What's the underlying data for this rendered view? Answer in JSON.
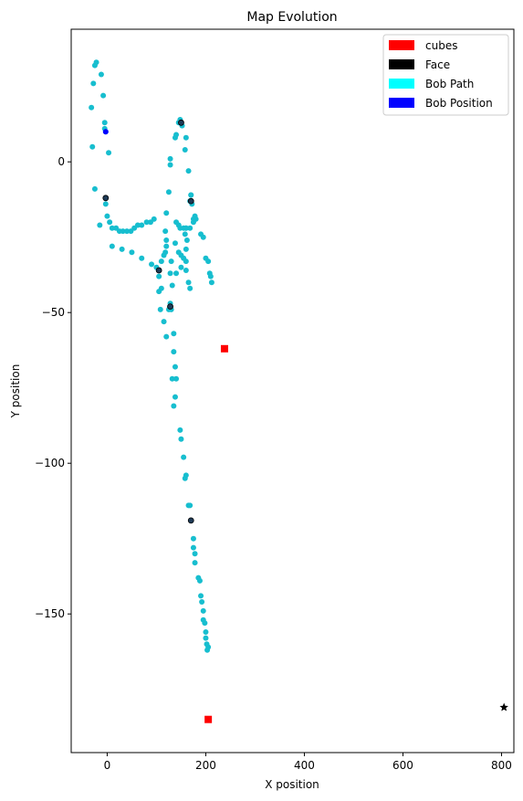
{
  "chart_data": {
    "type": "scatter",
    "title": "Map Evolution",
    "xlabel": "X position",
    "ylabel": "Y position",
    "xlim": [
      -73,
      825
    ],
    "ylim": [
      -196,
      44
    ],
    "xticks": [
      0,
      200,
      400,
      600,
      800
    ],
    "yticks": [
      0,
      -50,
      -100,
      -150
    ],
    "grid": false,
    "legend_position": "top-right",
    "legend": [
      {
        "label": "cubes",
        "color": "#ff0000"
      },
      {
        "label": "Face",
        "color": "#000000"
      },
      {
        "label": "Bob Path",
        "color": "#00ffff"
      },
      {
        "label": "Bob Position",
        "color": "#0000ff"
      }
    ],
    "series": [
      {
        "name": "Bob Path",
        "marker": "circle",
        "color": "#17becf",
        "points": [
          [
            -28,
            26
          ],
          [
            -25,
            32
          ],
          [
            -22,
            33
          ],
          [
            -12,
            29
          ],
          [
            -8,
            22
          ],
          [
            -5,
            13
          ],
          [
            -5,
            11
          ],
          [
            -3,
            10
          ],
          [
            3,
            3
          ],
          [
            -32,
            18
          ],
          [
            -30,
            5
          ],
          [
            -25,
            -9
          ],
          [
            -3,
            -12
          ],
          [
            -3,
            -14
          ],
          [
            0,
            -18
          ],
          [
            5,
            -20
          ],
          [
            10,
            -22
          ],
          [
            18,
            -22
          ],
          [
            25,
            -23
          ],
          [
            32,
            -23
          ],
          [
            40,
            -23
          ],
          [
            48,
            -23
          ],
          [
            55,
            -22
          ],
          [
            62,
            -21
          ],
          [
            70,
            -21
          ],
          [
            80,
            -20
          ],
          [
            88,
            -20
          ],
          [
            95,
            -19
          ],
          [
            -15,
            -21
          ],
          [
            10,
            -28
          ],
          [
            30,
            -29
          ],
          [
            50,
            -30
          ],
          [
            70,
            -32
          ],
          [
            90,
            -34
          ],
          [
            100,
            -35
          ],
          [
            105,
            -36
          ],
          [
            105,
            -38
          ],
          [
            110,
            -33
          ],
          [
            115,
            -31
          ],
          [
            118,
            -30
          ],
          [
            120,
            -28
          ],
          [
            120,
            -26
          ],
          [
            118,
            -23
          ],
          [
            120,
            -17
          ],
          [
            125,
            -10
          ],
          [
            128,
            -1
          ],
          [
            128,
            1
          ],
          [
            138,
            8
          ],
          [
            140,
            9
          ],
          [
            145,
            13
          ],
          [
            148,
            14
          ],
          [
            150,
            13
          ],
          [
            152,
            12
          ],
          [
            160,
            8
          ],
          [
            158,
            4
          ],
          [
            165,
            -3
          ],
          [
            170,
            -11
          ],
          [
            172,
            -14
          ],
          [
            178,
            -18
          ],
          [
            180,
            -19
          ],
          [
            175,
            -20
          ],
          [
            168,
            -22
          ],
          [
            160,
            -22
          ],
          [
            155,
            -22
          ],
          [
            148,
            -22
          ],
          [
            145,
            -21
          ],
          [
            140,
            -20
          ],
          [
            138,
            -27
          ],
          [
            145,
            -30
          ],
          [
            150,
            -31
          ],
          [
            155,
            -32
          ],
          [
            160,
            -33
          ],
          [
            160,
            -29
          ],
          [
            158,
            -24
          ],
          [
            162,
            -26
          ],
          [
            160,
            -22
          ],
          [
            170,
            -11
          ],
          [
            168,
            -13
          ],
          [
            175,
            -19
          ],
          [
            190,
            -24
          ],
          [
            195,
            -25
          ],
          [
            200,
            -32
          ],
          [
            205,
            -33
          ],
          [
            208,
            -37
          ],
          [
            210,
            -38
          ],
          [
            212,
            -40
          ],
          [
            110,
            -42
          ],
          [
            128,
            -47
          ],
          [
            130,
            -49
          ],
          [
            135,
            -57
          ],
          [
            135,
            -63
          ],
          [
            132,
            -72
          ],
          [
            138,
            -68
          ],
          [
            140,
            -72
          ],
          [
            138,
            -78
          ],
          [
            135,
            -81
          ],
          [
            148,
            -89
          ],
          [
            150,
            -92
          ],
          [
            155,
            -98
          ],
          [
            158,
            -105
          ],
          [
            160,
            -104
          ],
          [
            165,
            -114
          ],
          [
            168,
            -114
          ],
          [
            170,
            -119
          ],
          [
            175,
            -125
          ],
          [
            175,
            -128
          ],
          [
            178,
            -130
          ],
          [
            178,
            -133
          ],
          [
            185,
            -138
          ],
          [
            188,
            -139
          ],
          [
            190,
            -144
          ],
          [
            192,
            -146
          ],
          [
            195,
            -149
          ],
          [
            195,
            -152
          ],
          [
            198,
            -153
          ],
          [
            200,
            -156
          ],
          [
            200,
            -158
          ],
          [
            202,
            -160
          ],
          [
            205,
            -161
          ],
          [
            203,
            -162
          ],
          [
            125,
            -49
          ],
          [
            120,
            -58
          ],
          [
            115,
            -53
          ],
          [
            108,
            -49
          ],
          [
            105,
            -43
          ],
          [
            128,
            -37
          ],
          [
            132,
            -41
          ],
          [
            130,
            -33
          ],
          [
            140,
            -37
          ],
          [
            150,
            -35
          ],
          [
            160,
            -36
          ],
          [
            165,
            -40
          ],
          [
            168,
            -42
          ]
        ]
      },
      {
        "name": "Face",
        "marker": "circle-small",
        "color": "#1f3b57",
        "points": [
          [
            -3,
            -12
          ],
          [
            105,
            -36
          ],
          [
            128,
            -48
          ],
          [
            150,
            13
          ],
          [
            170,
            -13
          ],
          [
            170,
            -119
          ]
        ]
      },
      {
        "name": "Bob Position",
        "marker": "circle",
        "color": "#0000ff",
        "points": [
          [
            -3,
            10
          ]
        ]
      },
      {
        "name": "cubes",
        "marker": "square",
        "color": "#ff0000",
        "points": [
          [
            238,
            -62
          ],
          [
            205,
            -185
          ]
        ]
      },
      {
        "name": "Face",
        "marker": "star",
        "color": "#000000",
        "points": [
          [
            805,
            -181
          ]
        ]
      }
    ]
  }
}
